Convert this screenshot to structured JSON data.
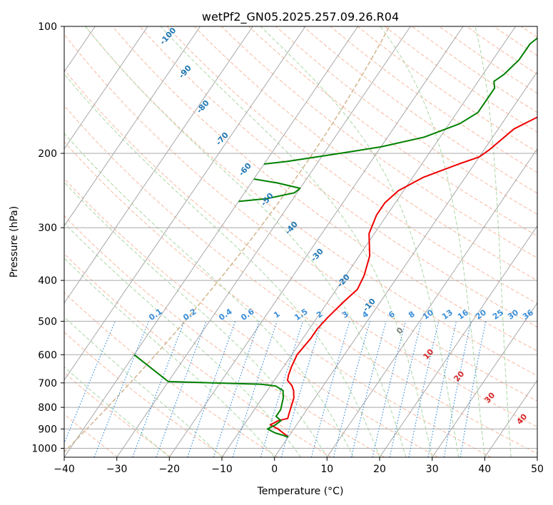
{
  "chart_data": {
    "type": "line",
    "title": "wetPf2_GN05.2025.257.09.26.R04",
    "xlabel": "Temperature (°C)",
    "ylabel": "Pressure (hPa)",
    "xlim": [
      -40,
      50
    ],
    "ylim": [
      1050,
      100
    ],
    "y_scale": "log",
    "x_ticks": [
      -40,
      -30,
      -20,
      -10,
      0,
      10,
      20,
      30,
      40,
      50
    ],
    "y_ticks": [
      100,
      200,
      300,
      400,
      500,
      600,
      700,
      800,
      900,
      1000
    ],
    "grid": true,
    "colors": {
      "temperature": "#ee0000",
      "dewpoint": "#008000",
      "isotherm": "#a8a8a8",
      "dry_adiabat": "#f7b89e",
      "moist_adiabat": "#a9d6a3",
      "mixing_ratio": "#3b8fd9",
      "frost_point_line": "#d2b48c",
      "dry_adiabat_label": "#1f77b4",
      "moist_adiabat_label": "#d62728"
    },
    "series": [
      {
        "points": [
          [
            0,
            940
          ],
          [
            -1.5,
            920
          ],
          [
            -3,
            900
          ],
          [
            -5,
            880
          ],
          [
            -4,
            860
          ],
          [
            -2.5,
            850
          ],
          [
            -3,
            820
          ],
          [
            -3.5,
            790
          ],
          [
            -4,
            760
          ],
          [
            -5,
            730
          ],
          [
            -6,
            710
          ],
          [
            -7.5,
            690
          ],
          [
            -8,
            670
          ],
          [
            -8.5,
            640
          ],
          [
            -9,
            600
          ],
          [
            -8.5,
            550
          ],
          [
            -8.5,
            520
          ],
          [
            -8,
            490
          ],
          [
            -7,
            450
          ],
          [
            -6,
            420
          ],
          [
            -6.5,
            390
          ],
          [
            -8,
            350
          ],
          [
            -11,
            310
          ],
          [
            -12,
            280
          ],
          [
            -12,
            262
          ],
          [
            -11,
            245
          ],
          [
            -8,
            228
          ],
          [
            -3,
            212
          ],
          [
            0,
            204
          ],
          [
            1,
            196
          ],
          [
            3,
            175
          ],
          [
            10,
            150
          ],
          [
            20,
            130
          ],
          [
            27,
            116
          ],
          [
            33,
            100
          ]
        ]
      },
      {
        "points": [
          [
            0,
            940
          ],
          [
            -3,
            920
          ],
          [
            -5,
            900
          ],
          [
            -4,
            880
          ],
          [
            -3.5,
            860
          ],
          [
            -5,
            840
          ],
          [
            -5,
            810
          ],
          [
            -6,
            760
          ],
          [
            -7,
            730
          ],
          [
            -9,
            712
          ],
          [
            -12,
            705
          ],
          [
            -30,
            695
          ],
          [
            -40,
            600
          ]
        ]
      },
      {
        "points": [
          [
            -40,
            212
          ],
          [
            -36,
            209
          ],
          [
            -30,
            203
          ],
          [
            -25,
            198
          ],
          [
            -20,
            193
          ],
          [
            -13,
            183
          ],
          [
            -8,
            170
          ],
          [
            -6,
            160
          ],
          [
            -6,
            150
          ],
          [
            -6,
            140
          ],
          [
            -7,
            135
          ],
          [
            -6,
            130
          ],
          [
            -5,
            120
          ],
          [
            -5,
            110
          ],
          [
            -3,
            100
          ]
        ]
      },
      {
        "points": [
          [
            -40,
            230
          ],
          [
            -35,
            235
          ],
          [
            -30,
            242
          ],
          [
            -30.5,
            248
          ],
          [
            -35,
            256
          ],
          [
            -40,
            260
          ]
        ]
      }
    ],
    "dry_adiabat_labels": [
      "-100",
      "-90",
      "-80",
      "-70",
      "-60",
      "-50",
      "-40",
      "-30",
      "-20",
      "-10"
    ],
    "moist_adiabat_labels": [
      "0",
      "10",
      "20",
      "30",
      "40"
    ],
    "mixing_ratio_labels": [
      "0.1",
      "0.2",
      "0.4",
      "0.6",
      "1",
      "1.5",
      "2",
      "3",
      "4",
      "6",
      "8",
      "10",
      "13",
      "16",
      "20",
      "25",
      "30",
      "36"
    ]
  }
}
